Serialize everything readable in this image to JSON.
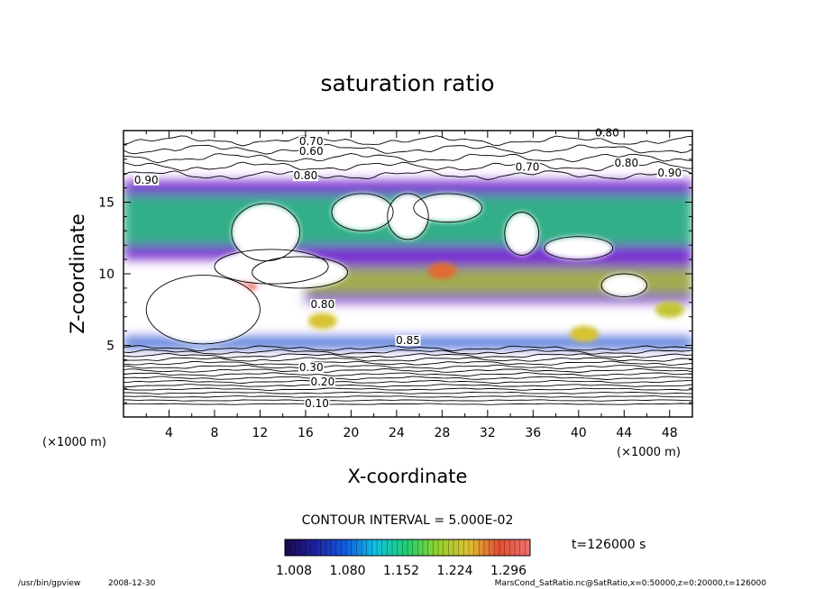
{
  "chart_data": {
    "type": "heatmap",
    "title": "saturation ratio",
    "xlabel": "X-coordinate",
    "ylabel": "Z-coordinate",
    "x_unit": "(×1000 m)",
    "z_unit": "(×1000 m)",
    "xlim": [
      0,
      50
    ],
    "ylim": [
      0,
      20
    ],
    "x_ticks": [
      "4",
      "8",
      "12",
      "16",
      "20",
      "24",
      "28",
      "32",
      "36",
      "40",
      "44",
      "48"
    ],
    "y_ticks": [
      "5",
      "10",
      "15"
    ],
    "contour_interval_text": "CONTOUR INTERVAL = 5.000E-02",
    "time_text": "t=126000 s",
    "colorbar_ticks": [
      "1.008",
      "1.080",
      "1.152",
      "1.224",
      "1.296"
    ],
    "colorbar_range": [
      1.008,
      1.296
    ],
    "contour_labels": [
      {
        "x": 16.5,
        "z": 19.0,
        "text": "0.70"
      },
      {
        "x": 16.5,
        "z": 18.3,
        "text": "0.60"
      },
      {
        "x": 42.5,
        "z": 19.6,
        "text": "0.80"
      },
      {
        "x": 35.5,
        "z": 17.2,
        "text": "0.70"
      },
      {
        "x": 44.2,
        "z": 17.5,
        "text": "0.80"
      },
      {
        "x": 48.0,
        "z": 16.8,
        "text": "0.90"
      },
      {
        "x": 2.0,
        "z": 16.3,
        "text": "0.90"
      },
      {
        "x": 16.0,
        "z": 16.6,
        "text": "0.80"
      },
      {
        "x": 17.5,
        "z": 7.6,
        "text": "0.80"
      },
      {
        "x": 25.0,
        "z": 5.1,
        "text": "0.85"
      },
      {
        "x": 16.5,
        "z": 3.2,
        "text": "0.30"
      },
      {
        "x": 17.5,
        "z": 2.2,
        "text": "0.20"
      },
      {
        "x": 17.0,
        "z": 0.7,
        "text": "0.10"
      }
    ],
    "supersaturated_regions": [
      {
        "name": "upper band",
        "x_range": [
          0,
          50
        ],
        "z_range": [
          11,
          16.5
        ],
        "peak": 1.15
      },
      {
        "name": "mid band",
        "x_range": [
          16,
          50
        ],
        "z_range": [
          8,
          11
        ],
        "peak": 1.2
      },
      {
        "name": "hot spot",
        "x": 10.5,
        "z": 9.2,
        "peak": 1.296
      },
      {
        "name": "hot spot",
        "x": 28.0,
        "z": 10.2,
        "peak": 1.25
      },
      {
        "name": "hot spot",
        "x": 17.5,
        "z": 6.7,
        "peak": 1.22
      },
      {
        "name": "hot spot",
        "x": 40.5,
        "z": 5.8,
        "peak": 1.22
      },
      {
        "name": "hot spot",
        "x": 48.0,
        "z": 7.5,
        "peak": 1.21
      },
      {
        "name": "lower strip",
        "x_range": [
          0,
          50
        ],
        "z_range": [
          4.8,
          5.6
        ],
        "peak": 1.1
      }
    ],
    "grid": false,
    "legend": "bottom-center colorbar"
  },
  "footer": {
    "program": "/usr/bin/gpview",
    "date": "2008-12-30",
    "source": "MarsCond_SatRatio.nc@SatRatio,x=0:50000,z=0:20000,t=126000"
  }
}
